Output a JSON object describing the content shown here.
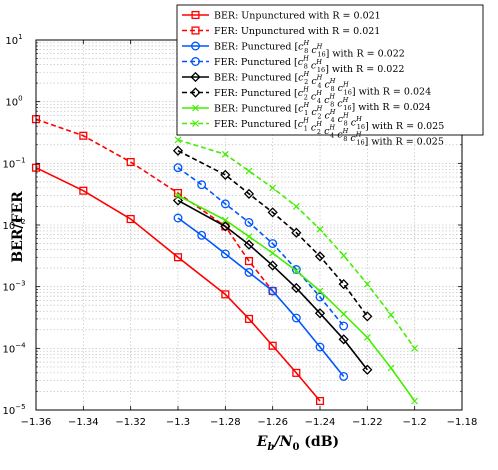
{
  "chart_data": {
    "type": "line",
    "xlabel": {
      "E": "E",
      "b": "b",
      "mid": "/N",
      "zero": "0",
      "unit": " (dB)"
    },
    "ylabel": "BER/FER",
    "xlim": [
      -1.36,
      -1.18
    ],
    "ylim_log10": [
      -5,
      1
    ],
    "y_scale": "log",
    "grid": true,
    "legend_position": "top-right",
    "x_ticks": [
      {
        "value": -1.36,
        "label": "−1.36"
      },
      {
        "value": -1.34,
        "label": "−1.34"
      },
      {
        "value": -1.32,
        "label": "−1.32"
      },
      {
        "value": -1.3,
        "label": "−1.3"
      },
      {
        "value": -1.28,
        "label": "−1.28"
      },
      {
        "value": -1.26,
        "label": "−1.26"
      },
      {
        "value": -1.24,
        "label": "−1.24"
      },
      {
        "value": -1.22,
        "label": "−1.22"
      },
      {
        "value": -1.2,
        "label": "−1.2"
      },
      {
        "value": -1.18,
        "label": "−1.18"
      }
    ],
    "y_ticks": [
      {
        "exponent": 1,
        "base": "10",
        "exp": "1"
      },
      {
        "exponent": 0,
        "base": "10",
        "exp": "0"
      },
      {
        "exponent": -1,
        "base": "10",
        "exp": "−1"
      },
      {
        "exponent": -2,
        "base": "10",
        "exp": "−2"
      },
      {
        "exponent": -3,
        "base": "10",
        "exp": "−3"
      },
      {
        "exponent": -4,
        "base": "10",
        "exp": "−4"
      },
      {
        "exponent": -5,
        "base": "10",
        "exp": "−5"
      }
    ],
    "series": [
      {
        "legend": {
          "pre": "BER: Unpunctured with R = 0.021",
          "terms": [],
          "post": ""
        },
        "color": "#ff0000",
        "dash": "solid",
        "marker": "square",
        "x": [
          -1.36,
          -1.34,
          -1.32,
          -1.3,
          -1.28,
          -1.27,
          -1.26,
          -1.25,
          -1.24
        ],
        "y": [
          0.085,
          0.036,
          0.0125,
          0.003,
          0.00075,
          0.0003,
          0.00011,
          4e-05,
          1.4e-05
        ]
      },
      {
        "legend": {
          "pre": "FER: Unpunctured with R = 0.021",
          "terms": [],
          "post": ""
        },
        "color": "#ff0000",
        "dash": "dashed",
        "marker": "square",
        "x": [
          -1.36,
          -1.34,
          -1.32,
          -1.3,
          -1.28,
          -1.27,
          -1.26
        ],
        "y": [
          0.52,
          0.28,
          0.105,
          0.033,
          0.0095,
          0.0026,
          0.00085
        ]
      },
      {
        "legend": {
          "pre": "BER: Punctured [",
          "terms": [
            [
              "c",
              "8"
            ],
            [
              "c",
              "16"
            ]
          ],
          "post": "] with R = 0.022"
        },
        "color": "#0055ff",
        "dash": "solid",
        "marker": "circle",
        "x": [
          -1.3,
          -1.29,
          -1.28,
          -1.27,
          -1.26,
          -1.25,
          -1.24,
          -1.23
        ],
        "y": [
          0.013,
          0.0068,
          0.0034,
          0.0017,
          0.00085,
          0.00031,
          0.000105,
          3.5e-05
        ]
      },
      {
        "legend": {
          "pre": "FER: Punctured [",
          "terms": [
            [
              "c",
              "8"
            ],
            [
              "c",
              "16"
            ]
          ],
          "post": "] with R = 0.022"
        },
        "color": "#0055ff",
        "dash": "dashed",
        "marker": "circle",
        "x": [
          -1.3,
          -1.29,
          -1.28,
          -1.27,
          -1.26,
          -1.25,
          -1.24,
          -1.23
        ],
        "y": [
          0.085,
          0.045,
          0.022,
          0.011,
          0.005,
          0.0019,
          0.00068,
          0.00023
        ]
      },
      {
        "legend": {
          "pre": "BER: Punctured [",
          "terms": [
            [
              "c",
              "2"
            ],
            [
              "c",
              "4"
            ],
            [
              "c",
              "8"
            ],
            [
              "c",
              "16"
            ]
          ],
          "post": "] with R = 0.024"
        },
        "color": "#000000",
        "dash": "solid",
        "marker": "diamond",
        "x": [
          -1.3,
          -1.28,
          -1.27,
          -1.26,
          -1.25,
          -1.24,
          -1.23,
          -1.22
        ],
        "y": [
          0.025,
          0.0095,
          0.0048,
          0.0022,
          0.00095,
          0.00037,
          0.00014,
          4.5e-05
        ]
      },
      {
        "legend": {
          "pre": "FER: Punctured [",
          "terms": [
            [
              "c",
              "2"
            ],
            [
              "c",
              "4"
            ],
            [
              "c",
              "8"
            ],
            [
              "c",
              "16"
            ]
          ],
          "post": "] with R = 0.024"
        },
        "color": "#000000",
        "dash": "dashed",
        "marker": "diamond",
        "x": [
          -1.3,
          -1.28,
          -1.27,
          -1.26,
          -1.25,
          -1.24,
          -1.23,
          -1.22
        ],
        "y": [
          0.16,
          0.065,
          0.032,
          0.016,
          0.0075,
          0.0031,
          0.0011,
          0.00033
        ]
      },
      {
        "legend": {
          "pre": "BER: Punctured [",
          "terms": [
            [
              "c",
              "1"
            ],
            [
              "c",
              "2"
            ],
            [
              "c",
              "4"
            ],
            [
              "c",
              "8"
            ],
            [
              "c",
              "16"
            ]
          ],
          "post": "] with R = 0.025"
        },
        "color": "#44ee00",
        "dash": "solid",
        "marker": "x",
        "x": [
          -1.3,
          -1.28,
          -1.27,
          -1.26,
          -1.25,
          -1.24,
          -1.23,
          -1.22,
          -1.21,
          -1.2
        ],
        "y": [
          0.03,
          0.012,
          0.0065,
          0.0035,
          0.0018,
          0.00085,
          0.00036,
          0.00015,
          4.8e-05,
          1.4e-05
        ]
      },
      {
        "legend": {
          "pre": "FER: Punctured [",
          "terms": [
            [
              "c",
              "1"
            ],
            [
              "c",
              "2"
            ],
            [
              "c",
              "4"
            ],
            [
              "c",
              "8"
            ],
            [
              "c",
              "16"
            ]
          ],
          "post": "] with R = 0.025"
        },
        "color": "#44ee00",
        "dash": "dashed",
        "marker": "x",
        "x": [
          -1.3,
          -1.28,
          -1.27,
          -1.26,
          -1.25,
          -1.24,
          -1.23,
          -1.22,
          -1.21,
          -1.2
        ],
        "y": [
          0.24,
          0.14,
          0.075,
          0.04,
          0.02,
          0.0085,
          0.0032,
          0.0011,
          0.00035,
          0.0001
        ]
      }
    ]
  }
}
